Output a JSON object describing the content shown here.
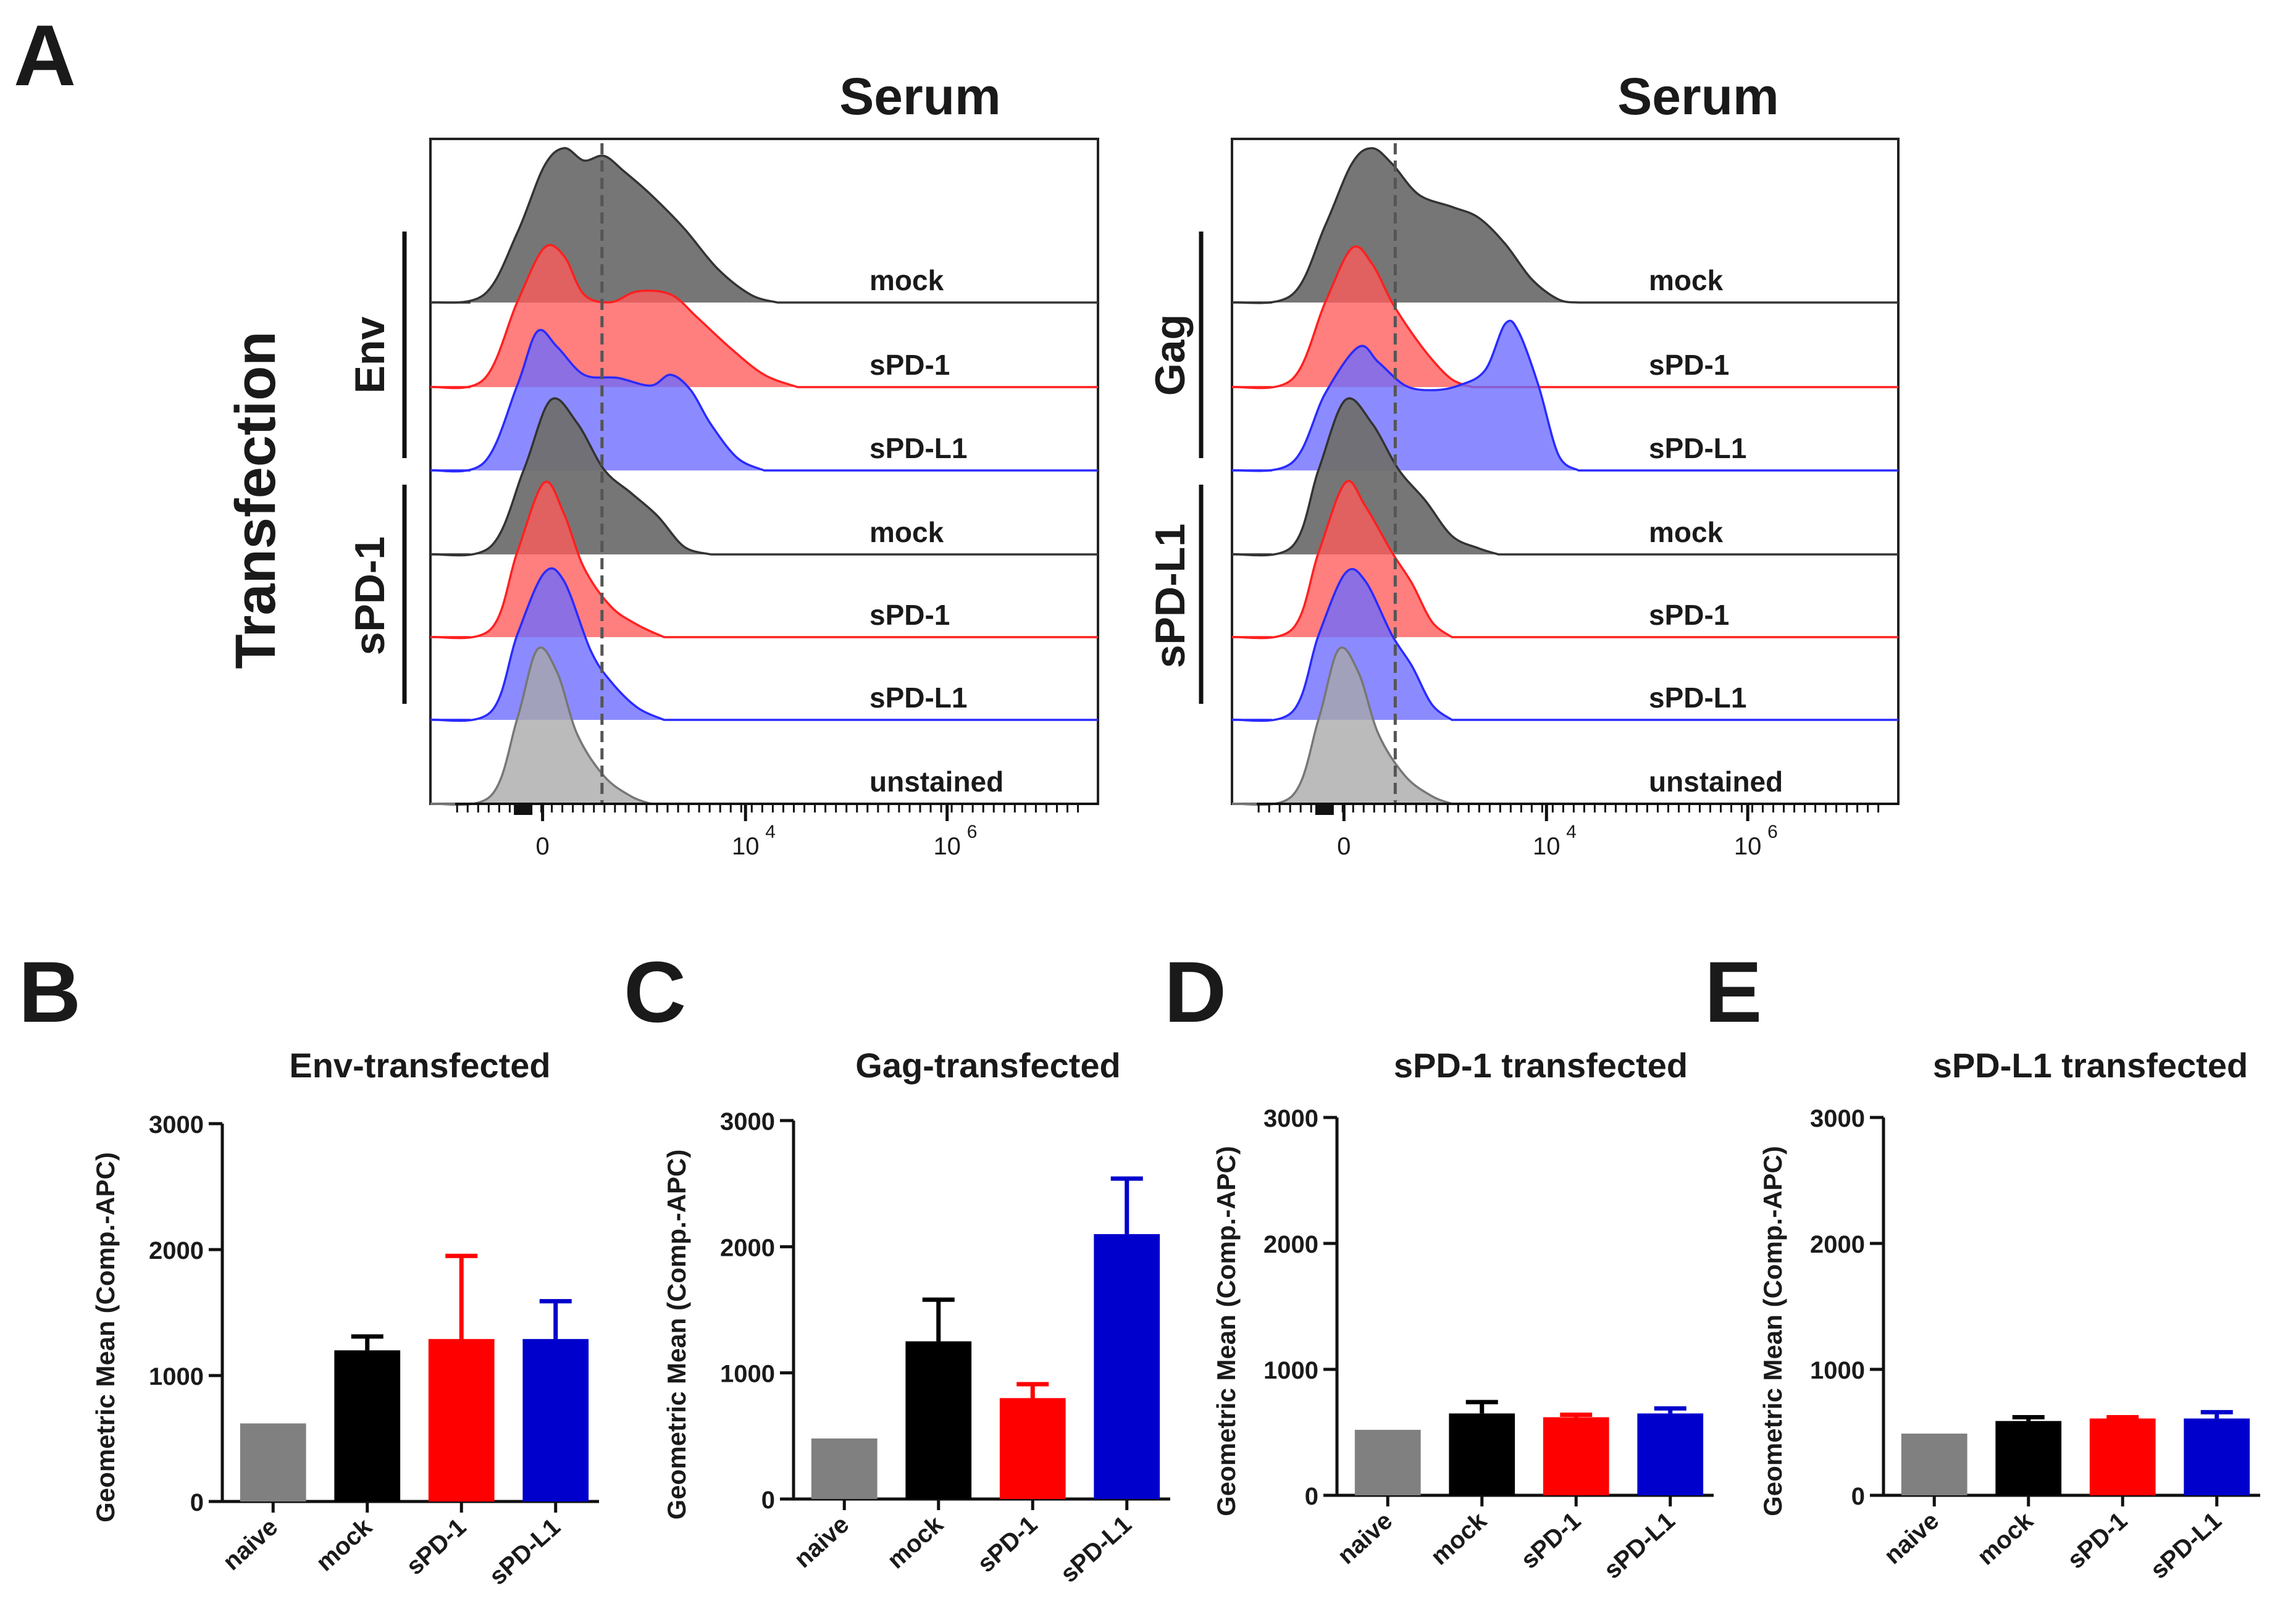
{
  "colors": {
    "black": "#1a1a1a",
    "gray": "#808080",
    "red": "#ff0000",
    "blue": "#0000cc",
    "dash": "#555555",
    "hist_gray": "#707070",
    "hist_red": "#ff3030",
    "hist_blue": "#3a3aff"
  },
  "panel_a": {
    "letter": "A",
    "y_title": "Transfection",
    "x_ticks": [
      "0",
      "10",
      "10"
    ],
    "x_tick_exponents": [
      "",
      "4",
      "6"
    ],
    "charts": [
      {
        "title": "Serum",
        "group_labels": [
          "Env",
          "sPD-1"
        ],
        "rows": [
          {
            "label": "mock",
            "color": "gray"
          },
          {
            "label": "sPD-1",
            "color": "red"
          },
          {
            "label": "sPD-L1",
            "color": "blue"
          },
          {
            "label": "mock",
            "color": "gray"
          },
          {
            "label": "sPD-1",
            "color": "red"
          },
          {
            "label": "sPD-L1",
            "color": "blue"
          },
          {
            "label": "unstained",
            "color": "lightgray"
          }
        ]
      },
      {
        "title": "Serum",
        "group_labels": [
          "Gag",
          "sPD-L1"
        ],
        "rows": [
          {
            "label": "mock",
            "color": "gray"
          },
          {
            "label": "sPD-1",
            "color": "red"
          },
          {
            "label": "sPD-L1",
            "color": "blue"
          },
          {
            "label": "mock",
            "color": "gray"
          },
          {
            "label": "sPD-1",
            "color": "red"
          },
          {
            "label": "sPD-L1",
            "color": "blue"
          },
          {
            "label": "unstained",
            "color": "lightgray"
          }
        ]
      }
    ]
  },
  "chart_data": [
    {
      "type": "bar",
      "letter": "B",
      "title": "Env-transfected",
      "xlabel": "",
      "ylabel": "Geometric Mean  (Comp.-APC)",
      "ylim": [
        0,
        3000
      ],
      "yticks": [
        "0",
        "1000",
        "2000",
        "3000"
      ],
      "categories": [
        "naive",
        "mock",
        "sPD-1",
        "sPD-L1"
      ],
      "values": [
        620,
        1200,
        1290,
        1290
      ],
      "errors": [
        0,
        110,
        660,
        300
      ],
      "colors": [
        "#808080",
        "#000000",
        "#ff0000",
        "#0000cc"
      ]
    },
    {
      "type": "bar",
      "letter": "C",
      "title": "Gag-transfected",
      "xlabel": "",
      "ylabel": "Geometric Mean  (Comp.-APC)",
      "ylim": [
        0,
        3000
      ],
      "yticks": [
        "0",
        "1000",
        "2000",
        "3000"
      ],
      "categories": [
        "naive",
        "mock",
        "sPD-1",
        "sPD-L1"
      ],
      "values": [
        480,
        1250,
        800,
        2100
      ],
      "errors": [
        0,
        330,
        110,
        440
      ],
      "colors": [
        "#808080",
        "#000000",
        "#ff0000",
        "#0000cc"
      ]
    },
    {
      "type": "bar",
      "letter": "D",
      "title": "sPD-1 transfected",
      "xlabel": "",
      "ylabel": "Geometric Mean  (Comp.-APC)",
      "ylim": [
        0,
        3000
      ],
      "yticks": [
        "0",
        "1000",
        "2000",
        "3000"
      ],
      "categories": [
        "naive",
        "mock",
        "sPD-1",
        "sPD-L1"
      ],
      "values": [
        520,
        650,
        620,
        650
      ],
      "errors": [
        0,
        90,
        20,
        40
      ],
      "colors": [
        "#808080",
        "#000000",
        "#ff0000",
        "#0000cc"
      ]
    },
    {
      "type": "bar",
      "letter": "E",
      "title": "sPD-L1 transfected",
      "xlabel": "",
      "ylabel": "Geometric Mean  (Comp.-APC)",
      "ylim": [
        0,
        3000
      ],
      "yticks": [
        "0",
        "1000",
        "2000",
        "3000"
      ],
      "categories": [
        "naive",
        "mock",
        "sPD-1",
        "sPD-L1"
      ],
      "values": [
        490,
        590,
        610,
        610
      ],
      "errors": [
        0,
        30,
        10,
        50
      ],
      "colors": [
        "#808080",
        "#000000",
        "#ff0000",
        "#0000cc"
      ]
    }
  ]
}
